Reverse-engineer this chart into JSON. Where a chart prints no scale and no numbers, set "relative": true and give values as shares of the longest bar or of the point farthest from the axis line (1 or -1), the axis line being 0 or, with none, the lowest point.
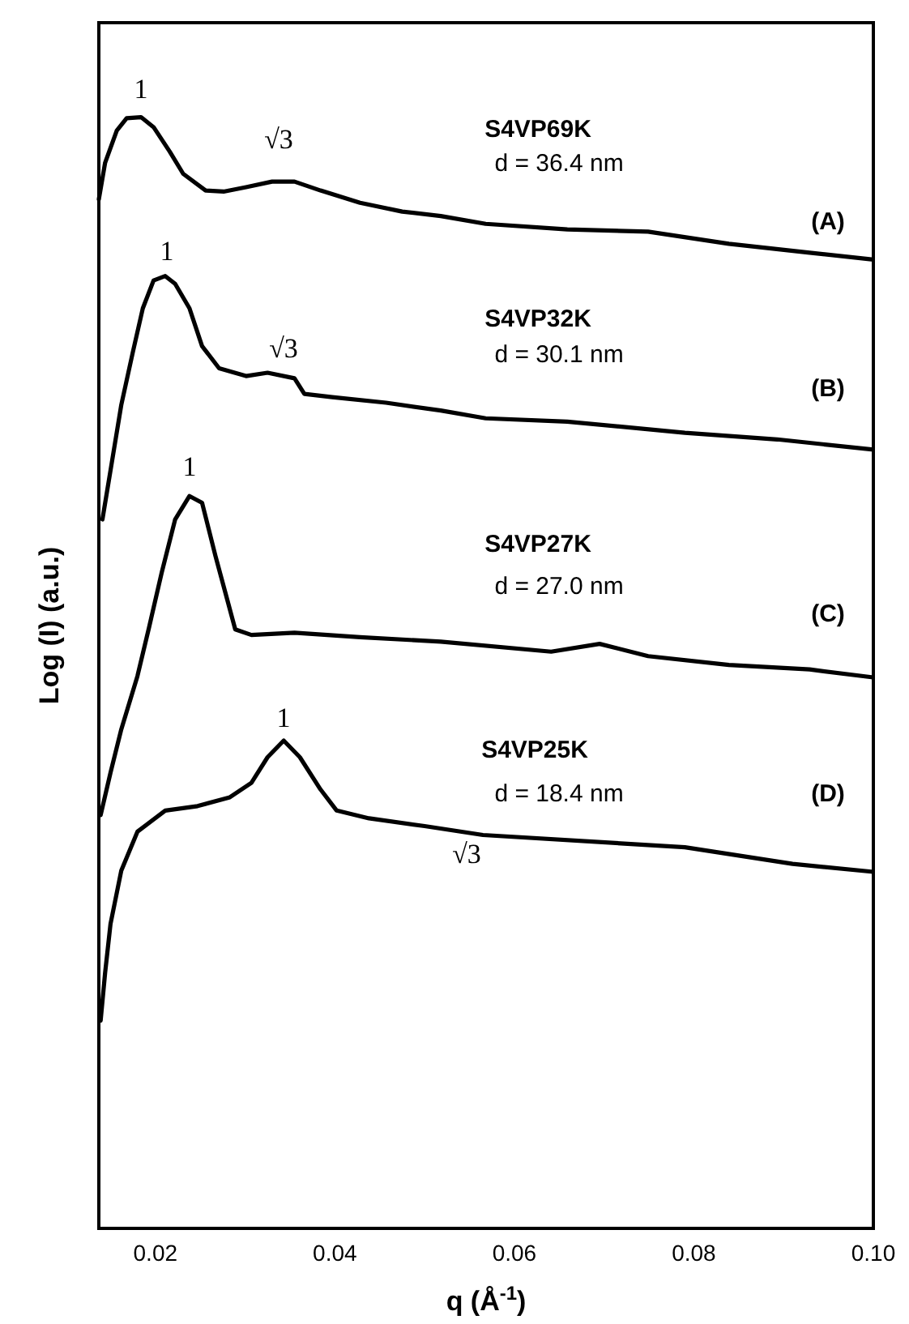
{
  "chart_data": {
    "type": "line",
    "relative": true,
    "xlabel": "q (Å$^{-1}$)",
    "ylabel": "Log (I) (a.u.)",
    "xlim": [
      0.0137,
      0.1
    ],
    "xticks": [
      0.02,
      0.04,
      0.06,
      0.08,
      {
        "value": 0.1,
        "label": "0.10"
      }
    ],
    "tick_labels": "x",
    "marker": "none",
    "line_style": "solid",
    "series": [
      {
        "color": "#000000",
        "x": [
          0.0137,
          0.0144,
          0.0157,
          0.0168,
          0.0184,
          0.0198,
          0.0216,
          0.0231,
          0.0256,
          0.0276,
          0.0301,
          0.033,
          0.0355,
          0.0384,
          0.0428,
          0.0475,
          0.0518,
          0.0568,
          0.0659,
          0.0749,
          0.0839,
          0.0929,
          0.0998
        ],
        "values": [
          0.926,
          0.959,
          0.988,
          0.999,
          1,
          0.991,
          0.969,
          0.949,
          0.934,
          0.933,
          0.937,
          0.942,
          0.942,
          0.934,
          0.923,
          0.915,
          0.911,
          0.904,
          0.899,
          0.897,
          0.886,
          0.878,
          0.872
        ]
      },
      {
        "color": "#000000",
        "x": [
          0.0141,
          0.015,
          0.0162,
          0.0175,
          0.0186,
          0.0198,
          0.0211,
          0.0222,
          0.0238,
          0.0252,
          0.0271,
          0.0301,
          0.0325,
          0.0355,
          0.0366,
          0.0397,
          0.0457,
          0.0518,
          0.0568,
          0.0659,
          0.079,
          0.0893,
          0.0998
        ],
        "values": [
          0.638,
          0.682,
          0.741,
          0.789,
          0.828,
          0.853,
          0.857,
          0.85,
          0.828,
          0.794,
          0.774,
          0.767,
          0.77,
          0.765,
          0.751,
          0.748,
          0.743,
          0.736,
          0.729,
          0.726,
          0.716,
          0.71,
          0.701
        ]
      },
      {
        "color": "#000000",
        "x": [
          0.0139,
          0.015,
          0.0162,
          0.018,
          0.0193,
          0.0207,
          0.0222,
          0.0238,
          0.0252,
          0.0267,
          0.028,
          0.0289,
          0.0307,
          0.0355,
          0.0428,
          0.0518,
          0.0641,
          0.0695,
          0.0749,
          0.0839,
          0.0929,
          0.0998
        ],
        "values": [
          0.372,
          0.41,
          0.449,
          0.497,
          0.541,
          0.59,
          0.638,
          0.659,
          0.653,
          0.605,
          0.566,
          0.539,
          0.534,
          0.536,
          0.532,
          0.528,
          0.519,
          0.526,
          0.515,
          0.507,
          0.503,
          0.496
        ]
      },
      {
        "color": "#000000",
        "x": [
          0.0139,
          0.0144,
          0.015,
          0.0162,
          0.018,
          0.0211,
          0.0247,
          0.0283,
          0.0307,
          0.0325,
          0.0343,
          0.0361,
          0.0384,
          0.0402,
          0.0438,
          0.05,
          0.0565,
          0.079,
          0.091,
          0.0998
        ],
        "values": [
          0.187,
          0.23,
          0.274,
          0.322,
          0.357,
          0.376,
          0.38,
          0.388,
          0.401,
          0.424,
          0.439,
          0.424,
          0.395,
          0.376,
          0.369,
          0.362,
          0.354,
          0.343,
          0.328,
          0.321
        ]
      }
    ],
    "annotations": [
      "1",
      "√3",
      "S4VP69K",
      "d = 36.4 nm",
      "(A)",
      "1",
      "√3",
      "S4VP32K",
      "d = 30.1 nm",
      "(B)",
      "1",
      "S4VP27K",
      "d = 27.0 nm",
      "(C)",
      "1",
      "S4VP25K",
      "d = 18.4 nm",
      "(D)",
      "√3"
    ]
  }
}
